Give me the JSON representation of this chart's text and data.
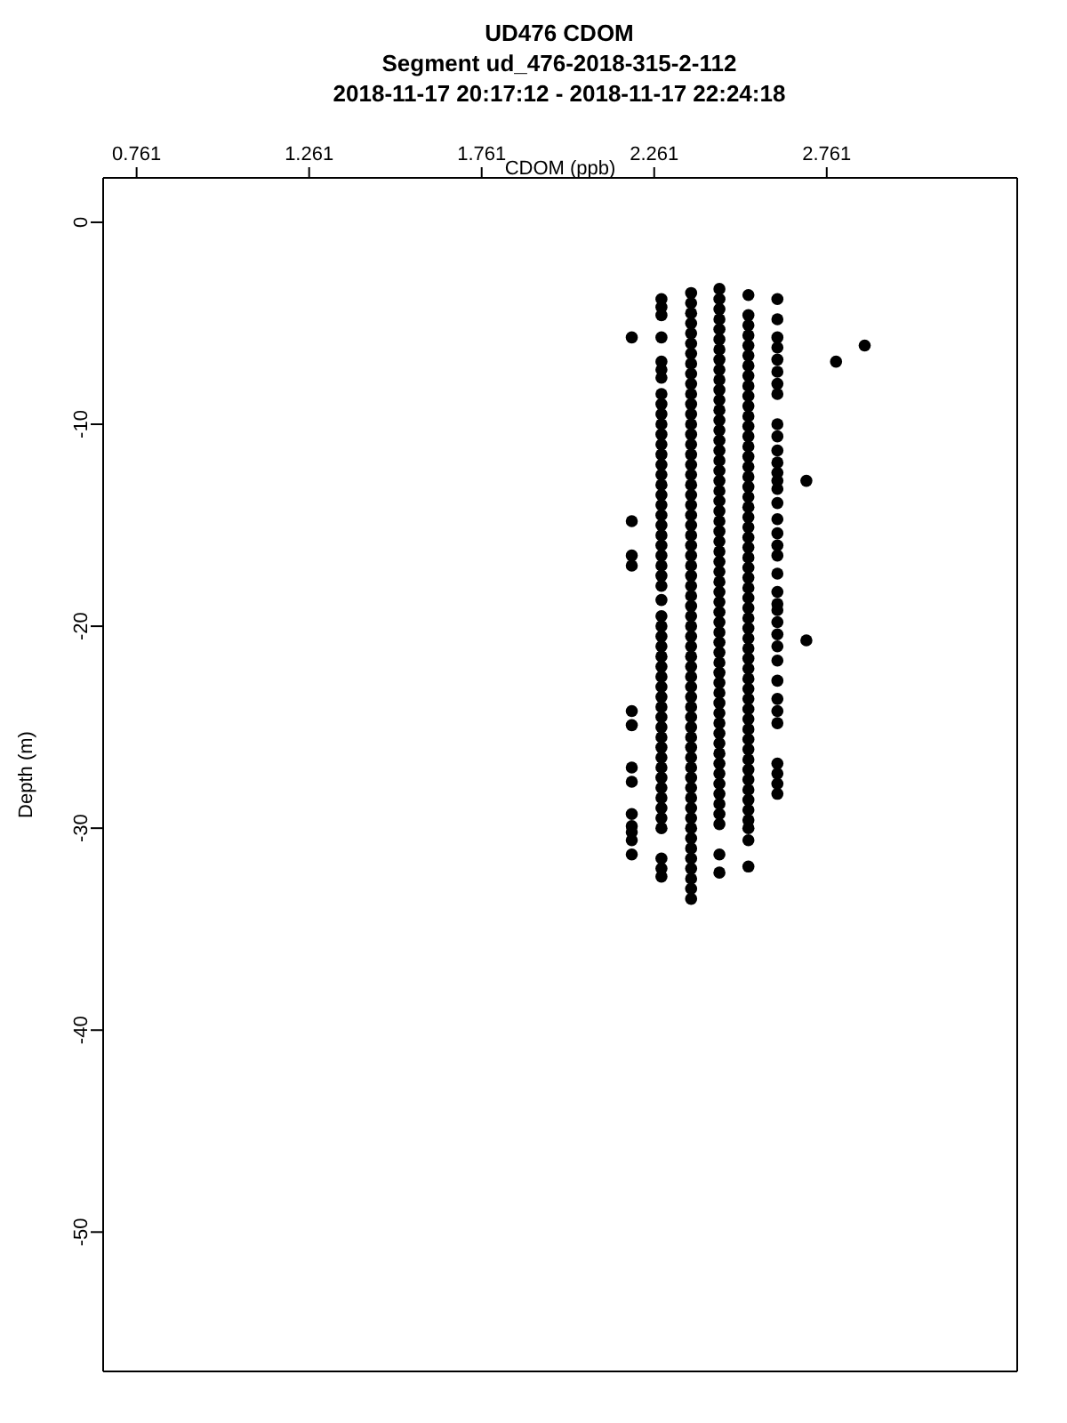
{
  "chart_data": {
    "type": "scatter",
    "title": "UD476 CDOM",
    "subtitle": "Segment ud_476-2018-315-2-112\n2018-11-17 20:17:12 - 2018-11-17 22:24:18",
    "xlabel": "CDOM (ppb)",
    "ylabel": "Depth (m)",
    "marker": "circle",
    "xlim": [
      0.664,
      3.313
    ],
    "xticks": [
      0.761,
      1.261,
      1.761,
      2.261,
      2.761
    ],
    "ylim": [
      -56.9,
      2.2
    ],
    "yticks": [
      0,
      -10,
      -20,
      -30,
      -40,
      -50
    ],
    "series": [
      {
        "color": "#000000",
        "x": [
          2.196,
          2.196,
          2.196,
          2.196,
          2.196,
          2.196,
          2.196,
          2.196,
          2.196,
          2.196,
          2.196,
          2.196,
          2.196
        ],
        "values": [
          -5.7,
          -14.8,
          -16.5,
          -17.0,
          -24.2,
          -24.9,
          -27.0,
          -27.7,
          -29.3,
          -29.9,
          -30.2,
          -30.6,
          -31.3
        ]
      },
      {
        "color": "#000000",
        "x": [
          2.282,
          2.282,
          2.282,
          2.282,
          2.282,
          2.282,
          2.282,
          2.282,
          2.282,
          2.282,
          2.282,
          2.282,
          2.282,
          2.282,
          2.282,
          2.282,
          2.282,
          2.282,
          2.282,
          2.282,
          2.282,
          2.282,
          2.282,
          2.282,
          2.282,
          2.282,
          2.282,
          2.282,
          2.282,
          2.282,
          2.282,
          2.282,
          2.282,
          2.282,
          2.282,
          2.282,
          2.282,
          2.282,
          2.282,
          2.282,
          2.282,
          2.282,
          2.282,
          2.282,
          2.282,
          2.282,
          2.282,
          2.282,
          2.282,
          2.282,
          2.282,
          2.282,
          2.282
        ],
        "values": [
          -3.8,
          -4.2,
          -4.6,
          -5.7,
          -6.9,
          -7.3,
          -7.7,
          -8.5,
          -9.0,
          -9.5,
          -10.0,
          -10.5,
          -11.0,
          -11.5,
          -12.0,
          -12.5,
          -13.0,
          -13.5,
          -14.0,
          -14.5,
          -15.0,
          -15.5,
          -16.0,
          -16.5,
          -17.0,
          -17.5,
          -18.0,
          -18.7,
          -19.5,
          -20.0,
          -20.5,
          -21.0,
          -21.5,
          -22.0,
          -22.5,
          -23.0,
          -23.5,
          -24.0,
          -24.5,
          -25.0,
          -25.5,
          -26.0,
          -26.5,
          -27.0,
          -27.5,
          -28.0,
          -28.5,
          -29.0,
          -29.5,
          -30.0,
          -31.5,
          -32.0,
          -32.4
        ]
      },
      {
        "color": "#000000",
        "x": [
          2.368,
          2.368,
          2.368,
          2.368,
          2.368,
          2.368,
          2.368,
          2.368,
          2.368,
          2.368,
          2.368,
          2.368,
          2.368,
          2.368,
          2.368,
          2.368,
          2.368,
          2.368,
          2.368,
          2.368,
          2.368,
          2.368,
          2.368,
          2.368,
          2.368,
          2.368,
          2.368,
          2.368,
          2.368,
          2.368,
          2.368,
          2.368,
          2.368,
          2.368,
          2.368,
          2.368,
          2.368,
          2.368,
          2.368,
          2.368,
          2.368,
          2.368,
          2.368,
          2.368,
          2.368,
          2.368,
          2.368,
          2.368,
          2.368,
          2.368,
          2.368,
          2.368,
          2.368,
          2.368,
          2.368,
          2.368,
          2.368,
          2.368,
          2.368,
          2.368,
          2.368
        ],
        "values": [
          -3.5,
          -4.0,
          -4.5,
          -5.0,
          -5.5,
          -6.0,
          -6.5,
          -7.0,
          -7.5,
          -8.0,
          -8.5,
          -9.0,
          -9.5,
          -10.0,
          -10.5,
          -11.0,
          -11.5,
          -12.0,
          -12.5,
          -13.0,
          -13.5,
          -14.0,
          -14.5,
          -15.0,
          -15.5,
          -16.0,
          -16.5,
          -17.0,
          -17.5,
          -18.0,
          -18.5,
          -19.0,
          -19.5,
          -20.0,
          -20.5,
          -21.0,
          -21.5,
          -22.0,
          -22.5,
          -23.0,
          -23.5,
          -24.0,
          -24.5,
          -25.0,
          -25.5,
          -26.0,
          -26.5,
          -27.0,
          -27.5,
          -28.0,
          -28.5,
          -29.0,
          -29.5,
          -30.0,
          -30.5,
          -31.0,
          -31.5,
          -32.0,
          -32.5,
          -33.0,
          -33.5
        ]
      },
      {
        "color": "#000000",
        "x": [
          2.45,
          2.45,
          2.45,
          2.45,
          2.45,
          2.45,
          2.45,
          2.45,
          2.45,
          2.45,
          2.45,
          2.45,
          2.45,
          2.45,
          2.45,
          2.45,
          2.45,
          2.45,
          2.45,
          2.45,
          2.45,
          2.45,
          2.45,
          2.45,
          2.45,
          2.45,
          2.45,
          2.45,
          2.45,
          2.45,
          2.45,
          2.45,
          2.45,
          2.45,
          2.45,
          2.45,
          2.45,
          2.45,
          2.45,
          2.45,
          2.45,
          2.45,
          2.45,
          2.45,
          2.45,
          2.45,
          2.45,
          2.45,
          2.45,
          2.45,
          2.45,
          2.45,
          2.45,
          2.45,
          2.45,
          2.45
        ],
        "values": [
          -3.3,
          -3.8,
          -4.3,
          -4.8,
          -5.3,
          -5.8,
          -6.3,
          -6.8,
          -7.3,
          -7.8,
          -8.3,
          -8.8,
          -9.3,
          -9.8,
          -10.3,
          -10.8,
          -11.3,
          -11.8,
          -12.3,
          -12.8,
          -13.3,
          -13.8,
          -14.3,
          -14.8,
          -15.3,
          -15.8,
          -16.3,
          -16.8,
          -17.3,
          -17.8,
          -18.3,
          -18.8,
          -19.3,
          -19.8,
          -20.3,
          -20.8,
          -21.3,
          -21.8,
          -22.3,
          -22.8,
          -23.3,
          -23.8,
          -24.3,
          -24.8,
          -25.3,
          -25.8,
          -26.3,
          -26.8,
          -27.3,
          -27.8,
          -28.3,
          -28.8,
          -29.3,
          -29.8,
          -31.3,
          -32.2
        ]
      },
      {
        "color": "#000000",
        "x": [
          2.534,
          2.534,
          2.534,
          2.534,
          2.534,
          2.534,
          2.534,
          2.534,
          2.534,
          2.534,
          2.534,
          2.534,
          2.534,
          2.534,
          2.534,
          2.534,
          2.534,
          2.534,
          2.534,
          2.534,
          2.534,
          2.534,
          2.534,
          2.534,
          2.534,
          2.534,
          2.534,
          2.534,
          2.534,
          2.534,
          2.534,
          2.534,
          2.534,
          2.534,
          2.534,
          2.534,
          2.534,
          2.534,
          2.534,
          2.534,
          2.534,
          2.534,
          2.534,
          2.534,
          2.534,
          2.534,
          2.534,
          2.534,
          2.534,
          2.534,
          2.534,
          2.534,
          2.534,
          2.534,
          2.534
        ],
        "values": [
          -3.6,
          -4.6,
          -5.1,
          -5.6,
          -6.1,
          -6.6,
          -7.1,
          -7.6,
          -8.1,
          -8.6,
          -9.1,
          -9.6,
          -10.1,
          -10.6,
          -11.1,
          -11.6,
          -12.1,
          -12.6,
          -13.1,
          -13.6,
          -14.1,
          -14.6,
          -15.1,
          -15.6,
          -16.1,
          -16.6,
          -17.1,
          -17.6,
          -18.1,
          -18.6,
          -19.1,
          -19.6,
          -20.1,
          -20.6,
          -21.1,
          -21.6,
          -22.1,
          -22.6,
          -23.1,
          -23.6,
          -24.1,
          -24.6,
          -25.1,
          -25.6,
          -26.1,
          -26.6,
          -27.1,
          -27.6,
          -28.1,
          -28.6,
          -29.1,
          -29.6,
          -30.0,
          -30.6,
          -31.9
        ]
      },
      {
        "color": "#000000",
        "x": [
          2.618,
          2.618,
          2.618,
          2.618,
          2.618,
          2.618,
          2.618,
          2.618,
          2.618,
          2.618,
          2.618,
          2.618,
          2.618,
          2.618,
          2.618,
          2.618,
          2.618,
          2.618,
          2.618,
          2.618,
          2.618,
          2.618,
          2.618,
          2.618,
          2.618,
          2.618,
          2.618,
          2.618,
          2.618,
          2.618,
          2.618,
          2.618,
          2.618,
          2.618,
          2.618,
          2.618
        ],
        "values": [
          -3.8,
          -4.8,
          -5.7,
          -6.2,
          -6.8,
          -7.4,
          -8.0,
          -8.5,
          -10.0,
          -10.6,
          -11.3,
          -11.9,
          -12.4,
          -12.8,
          -13.2,
          -13.9,
          -14.7,
          -15.4,
          -16.0,
          -16.5,
          -17.4,
          -18.3,
          -18.9,
          -19.2,
          -19.8,
          -20.4,
          -21.0,
          -21.7,
          -22.7,
          -23.6,
          -24.2,
          -24.8,
          -26.8,
          -27.3,
          -27.8,
          -28.3
        ]
      },
      {
        "color": "#000000",
        "x": [
          2.702,
          2.702,
          2.788,
          2.871
        ],
        "values": [
          -12.8,
          -20.7,
          -6.9,
          -6.1
        ]
      }
    ]
  }
}
